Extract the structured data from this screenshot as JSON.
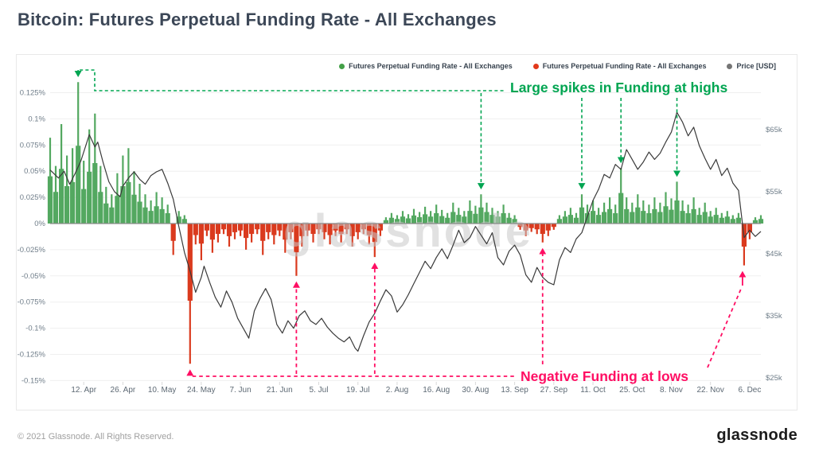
{
  "page": {
    "title": "Bitcoin: Futures Perpetual Funding Rate - All Exchanges",
    "watermark": "glassnode",
    "footer_copyright": "© 2021 Glassnode. All Rights Reserved.",
    "footer_logo": "glassnode"
  },
  "legend": [
    {
      "label": "Futures Perpetual Funding Rate - All Exchanges",
      "color": "#43a047"
    },
    {
      "label": "Futures Perpetual Funding Rate - All Exchanges",
      "color": "#e2391b"
    },
    {
      "label": "Price [USD]",
      "color": "#757575"
    }
  ],
  "colors": {
    "funding_positive": "#53a860",
    "funding_negative": "#da3a1e",
    "price_line": "#3a3a3a",
    "zero_line": "#8a8a8a",
    "gridline": "#efefef",
    "annotation_green": "#00a551",
    "annotation_pink": "#ff0e63",
    "watermark": "#c9c9c9"
  },
  "chart_data": {
    "type": "area+line",
    "title": "Bitcoin: Futures Perpetual Funding Rate - All Exchanges",
    "legend_position": "top-right",
    "grid": "horizontal",
    "x_axis": {
      "unit": "days since 2021-03-31",
      "range_days": [
        0,
        254
      ],
      "tick_labels": [
        "12. Apr",
        "26. Apr",
        "10. May",
        "24. May",
        "7. Jun",
        "21. Jun",
        "5. Jul",
        "19. Jul",
        "2. Aug",
        "16. Aug",
        "30. Aug",
        "13. Sep",
        "27. Sep",
        "11. Oct",
        "25. Oct",
        "8. Nov",
        "22. Nov",
        "6. Dec"
      ],
      "tick_days": [
        12,
        26,
        40,
        54,
        68,
        82,
        96,
        110,
        124,
        138,
        152,
        166,
        180,
        194,
        208,
        222,
        236,
        250
      ]
    },
    "y_left": {
      "label": "Futures Perpetual Funding Rate - All Exchanges (%)",
      "tick_labels": [
        "0.125%",
        "0.1%",
        "0.075%",
        "0.05%",
        "0.025%",
        "0%",
        "-0.025%",
        "-0.05%",
        "-0.075%",
        "-0.1%",
        "-0.125%",
        "-0.15%"
      ],
      "tick_values": [
        0.125,
        0.1,
        0.075,
        0.05,
        0.025,
        0,
        -0.025,
        -0.05,
        -0.075,
        -0.1,
        -0.125,
        -0.15
      ],
      "range": [
        0.145,
        -0.158
      ]
    },
    "y_right": {
      "label": "Price [USD]",
      "tick_labels": [
        "$65k",
        "$55k",
        "$45k",
        "$35k",
        "$25k"
      ],
      "tick_values": [
        65,
        55,
        45,
        35,
        25
      ]
    },
    "funding_rate_pct": {
      "start_day": 0,
      "step_days": 2,
      "values": [
        0.082,
        0.055,
        0.095,
        0.065,
        0.072,
        0.135,
        0.06,
        0.09,
        0.105,
        0.055,
        0.035,
        0.028,
        0.048,
        0.065,
        0.072,
        0.05,
        0.038,
        0.028,
        0.022,
        0.03,
        0.025,
        0.018,
        -0.03,
        0.012,
        0.008,
        -0.134,
        -0.02,
        -0.035,
        -0.012,
        -0.028,
        -0.018,
        -0.01,
        -0.022,
        -0.015,
        -0.012,
        -0.025,
        -0.018,
        -0.01,
        -0.03,
        -0.015,
        -0.02,
        -0.012,
        -0.028,
        -0.015,
        -0.05,
        -0.022,
        -0.012,
        -0.018,
        -0.01,
        -0.015,
        -0.02,
        -0.012,
        -0.018,
        -0.01,
        -0.022,
        -0.015,
        -0.01,
        -0.02,
        -0.032,
        -0.012,
        0.006,
        0.01,
        0.008,
        0.012,
        0.009,
        0.014,
        0.011,
        0.016,
        0.012,
        0.018,
        0.013,
        0.01,
        0.02,
        0.015,
        0.012,
        0.022,
        0.017,
        0.028,
        0.02,
        0.015,
        0.012,
        0.018,
        0.01,
        0.008,
        -0.006,
        -0.012,
        -0.008,
        -0.01,
        -0.018,
        -0.012,
        -0.006,
        0.008,
        0.012,
        0.015,
        0.01,
        0.028,
        0.018,
        0.022,
        0.015,
        0.02,
        0.025,
        0.018,
        0.053,
        0.025,
        0.02,
        0.028,
        0.022,
        0.018,
        0.025,
        0.02,
        0.03,
        0.024,
        0.04,
        0.022,
        0.018,
        0.025,
        0.015,
        0.02,
        0.012,
        0.015,
        0.01,
        0.012,
        0.008,
        0.01,
        -0.04,
        -0.015,
        0.006,
        0.008
      ]
    },
    "price_usd_k": {
      "points": [
        [
          0,
          58.5
        ],
        [
          3,
          57.2
        ],
        [
          5,
          58.3
        ],
        [
          7,
          56.2
        ],
        [
          9,
          58.0
        ],
        [
          11,
          60.0
        ],
        [
          13,
          62.8
        ],
        [
          14,
          64.2
        ],
        [
          16,
          62.2
        ],
        [
          17,
          63.0
        ],
        [
          19,
          59.6
        ],
        [
          21,
          56.6
        ],
        [
          23,
          55.0
        ],
        [
          25,
          54.2
        ],
        [
          26,
          55.9
        ],
        [
          28,
          57.2
        ],
        [
          30,
          58.2
        ],
        [
          32,
          57.0
        ],
        [
          34,
          56.2
        ],
        [
          36,
          57.6
        ],
        [
          38,
          58.2
        ],
        [
          40,
          58.6
        ],
        [
          42,
          56.4
        ],
        [
          44,
          53.8
        ],
        [
          46,
          49.4
        ],
        [
          48,
          45.2
        ],
        [
          50,
          42.2
        ],
        [
          52,
          38.8
        ],
        [
          54,
          41.2
        ],
        [
          55,
          43.0
        ],
        [
          57,
          40.4
        ],
        [
          59,
          38.0
        ],
        [
          61,
          36.4
        ],
        [
          63,
          39.0
        ],
        [
          65,
          37.2
        ],
        [
          67,
          34.6
        ],
        [
          69,
          33.0
        ],
        [
          71,
          31.4
        ],
        [
          73,
          35.8
        ],
        [
          75,
          37.8
        ],
        [
          77,
          39.4
        ],
        [
          79,
          37.6
        ],
        [
          81,
          33.6
        ],
        [
          83,
          32.2
        ],
        [
          85,
          34.2
        ],
        [
          87,
          33.0
        ],
        [
          89,
          35.0
        ],
        [
          91,
          35.8
        ],
        [
          93,
          34.2
        ],
        [
          95,
          33.6
        ],
        [
          97,
          34.6
        ],
        [
          99,
          33.2
        ],
        [
          101,
          32.2
        ],
        [
          103,
          31.4
        ],
        [
          105,
          30.8
        ],
        [
          107,
          31.6
        ],
        [
          109,
          29.8
        ],
        [
          110,
          29.3
        ],
        [
          112,
          31.8
        ],
        [
          114,
          34.0
        ],
        [
          116,
          35.4
        ],
        [
          118,
          37.4
        ],
        [
          120,
          39.2
        ],
        [
          122,
          38.2
        ],
        [
          124,
          35.6
        ],
        [
          126,
          36.8
        ],
        [
          128,
          38.4
        ],
        [
          130,
          40.2
        ],
        [
          132,
          42.0
        ],
        [
          134,
          43.8
        ],
        [
          136,
          42.6
        ],
        [
          138,
          44.4
        ],
        [
          140,
          45.8
        ],
        [
          142,
          44.2
        ],
        [
          144,
          46.4
        ],
        [
          146,
          48.8
        ],
        [
          148,
          46.8
        ],
        [
          150,
          47.6
        ],
        [
          152,
          49.4
        ],
        [
          154,
          48.0
        ],
        [
          156,
          46.6
        ],
        [
          158,
          48.4
        ],
        [
          160,
          44.4
        ],
        [
          162,
          43.2
        ],
        [
          164,
          45.4
        ],
        [
          166,
          46.4
        ],
        [
          168,
          44.8
        ],
        [
          170,
          41.6
        ],
        [
          172,
          40.4
        ],
        [
          174,
          42.8
        ],
        [
          176,
          41.2
        ],
        [
          178,
          40.4
        ],
        [
          180,
          40.0
        ],
        [
          182,
          44.0
        ],
        [
          184,
          46.0
        ],
        [
          186,
          45.2
        ],
        [
          188,
          47.4
        ],
        [
          190,
          48.4
        ],
        [
          192,
          51.0
        ],
        [
          194,
          53.6
        ],
        [
          196,
          55.4
        ],
        [
          198,
          57.8
        ],
        [
          200,
          57.2
        ],
        [
          202,
          59.4
        ],
        [
          204,
          58.6
        ],
        [
          206,
          61.8
        ],
        [
          208,
          60.2
        ],
        [
          210,
          58.6
        ],
        [
          212,
          59.8
        ],
        [
          214,
          61.4
        ],
        [
          216,
          60.2
        ],
        [
          218,
          61.2
        ],
        [
          220,
          63.0
        ],
        [
          222,
          64.6
        ],
        [
          224,
          67.8
        ],
        [
          226,
          66.2
        ],
        [
          228,
          64.0
        ],
        [
          230,
          65.4
        ],
        [
          232,
          62.4
        ],
        [
          234,
          60.4
        ],
        [
          236,
          58.6
        ],
        [
          238,
          60.2
        ],
        [
          240,
          57.6
        ],
        [
          242,
          58.8
        ],
        [
          244,
          56.4
        ],
        [
          246,
          55.2
        ],
        [
          248,
          47.6
        ],
        [
          250,
          48.8
        ],
        [
          252,
          47.8
        ],
        [
          254,
          48.6
        ]
      ]
    },
    "annotations": [
      {
        "id": "funding-highs",
        "text": "Large spikes in Funding at highs",
        "color": "#00a551",
        "targets_day_pct": [
          [
            10,
            0.135
          ],
          [
            154,
            0.028
          ],
          [
            190,
            0.028
          ],
          [
            204,
            0.053
          ],
          [
            224,
            0.04
          ]
        ]
      },
      {
        "id": "funding-lows",
        "text": "Negative Funding at lows",
        "color": "#ff0e63",
        "targets_day_pct": [
          [
            50,
            -0.134
          ],
          [
            88,
            -0.05
          ],
          [
            116,
            -0.032
          ],
          [
            176,
            -0.018
          ],
          [
            248,
            -0.04
          ]
        ]
      }
    ]
  }
}
